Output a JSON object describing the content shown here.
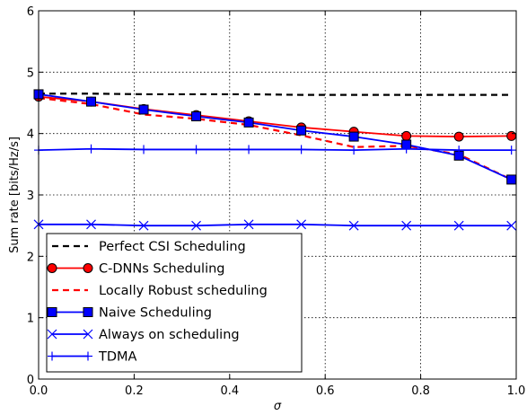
{
  "chart_data": {
    "type": "line",
    "xlabel": "σ",
    "ylabel": "Sum rate [bits/Hz/s]",
    "xlim": [
      0,
      1
    ],
    "ylim": [
      0,
      6
    ],
    "xticks": [
      "0.0",
      "0.2",
      "0.4",
      "0.6",
      "0.8",
      "1.0"
    ],
    "yticks": [
      "0",
      "1",
      "2",
      "3",
      "4",
      "5",
      "6"
    ],
    "grid": true,
    "legend_position": "bottom-left",
    "series": [
      {
        "name": "Perfect CSI Scheduling",
        "color": "#000000",
        "dash": "dashed",
        "marker": "none",
        "x": [
          0,
          0.11,
          0.22,
          0.33,
          0.44,
          0.55,
          0.66,
          0.77,
          0.88,
          0.99
        ],
        "y": [
          4.65,
          4.65,
          4.64,
          4.64,
          4.64,
          4.63,
          4.63,
          4.63,
          4.63,
          4.63
        ]
      },
      {
        "name": "C-DNNs Scheduling",
        "color": "#ff0000",
        "dash": "solid",
        "marker": "circle",
        "x": [
          0,
          0.11,
          0.22,
          0.33,
          0.44,
          0.55,
          0.66,
          0.77,
          0.88,
          0.99
        ],
        "y": [
          4.6,
          4.52,
          4.4,
          4.3,
          4.2,
          4.1,
          4.03,
          3.96,
          3.95,
          3.96
        ]
      },
      {
        "name": "Locally Robust scheduling",
        "color": "#ff0000",
        "dash": "dashed",
        "marker": "none",
        "x": [
          0,
          0.11,
          0.22,
          0.33,
          0.44,
          0.55,
          0.66,
          0.77,
          0.88,
          0.99
        ],
        "y": [
          4.58,
          4.48,
          4.31,
          4.24,
          4.14,
          3.97,
          3.78,
          3.8,
          3.66,
          3.25
        ]
      },
      {
        "name": "Naive Scheduling",
        "color": "#0000ff",
        "dash": "solid",
        "marker": "square",
        "x": [
          0,
          0.11,
          0.22,
          0.33,
          0.44,
          0.55,
          0.66,
          0.77,
          0.88,
          0.99
        ],
        "y": [
          4.64,
          4.52,
          4.39,
          4.28,
          4.18,
          4.05,
          3.95,
          3.82,
          3.64,
          3.25
        ]
      },
      {
        "name": "Always on scheduling",
        "color": "#0000ff",
        "dash": "solid",
        "marker": "x",
        "x": [
          0,
          0.11,
          0.22,
          0.33,
          0.44,
          0.55,
          0.66,
          0.77,
          0.88,
          0.99
        ],
        "y": [
          2.52,
          2.52,
          2.5,
          2.5,
          2.52,
          2.52,
          2.5,
          2.5,
          2.5,
          2.5
        ]
      },
      {
        "name": "TDMA",
        "color": "#0000ff",
        "dash": "solid",
        "marker": "plus",
        "x": [
          0,
          0.11,
          0.22,
          0.33,
          0.44,
          0.55,
          0.66,
          0.77,
          0.88,
          0.99
        ],
        "y": [
          3.73,
          3.75,
          3.74,
          3.74,
          3.74,
          3.74,
          3.73,
          3.75,
          3.73,
          3.73
        ]
      }
    ]
  }
}
